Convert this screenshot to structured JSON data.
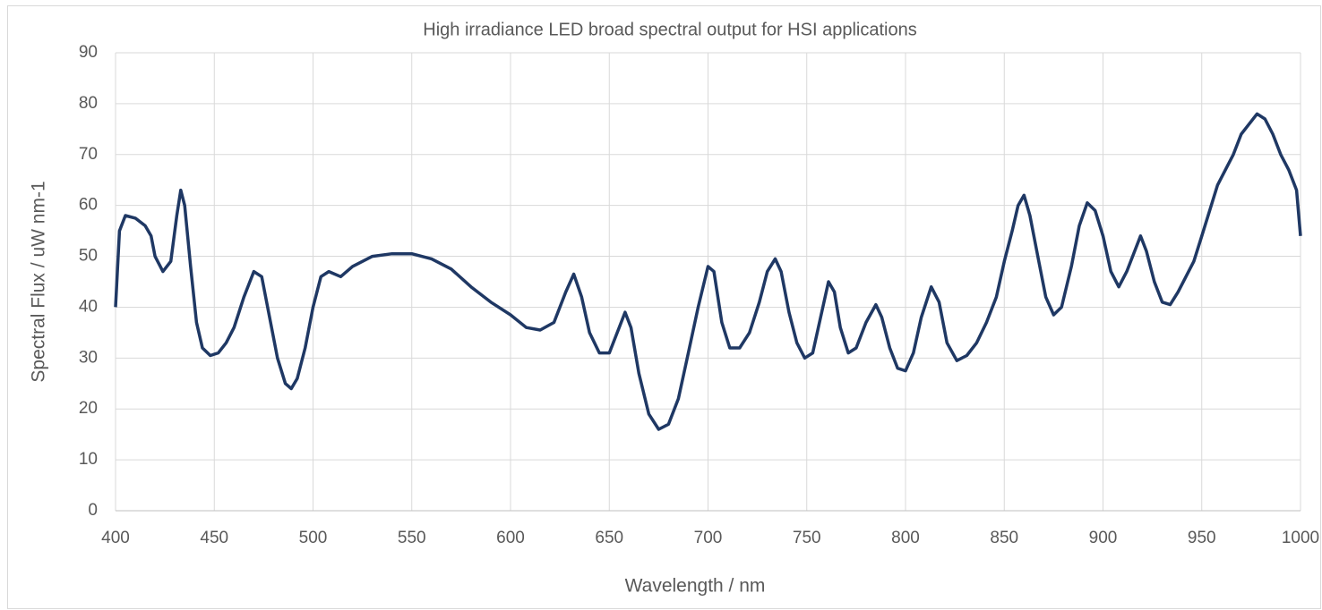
{
  "chart_data": {
    "type": "line",
    "title": "High irradiance LED broad spectral output for HSI applications",
    "x_label": "Wavelength / nm",
    "y_label": "Spectral Flux / uW nm-1",
    "xlim": [
      400,
      1000
    ],
    "xticks": [
      400,
      450,
      500,
      550,
      600,
      650,
      700,
      750,
      800,
      850,
      900,
      950,
      1000
    ],
    "ylim": [
      0,
      90
    ],
    "yticks": [
      0,
      10,
      20,
      30,
      40,
      50,
      60,
      70,
      80,
      90
    ],
    "grid": true,
    "x": [
      400,
      402,
      405,
      410,
      415,
      418,
      420,
      424,
      428,
      431,
      433,
      435,
      438,
      441,
      444,
      448,
      452,
      456,
      460,
      465,
      470,
      474,
      478,
      482,
      486,
      489,
      492,
      496,
      500,
      504,
      508,
      514,
      520,
      530,
      540,
      550,
      560,
      570,
      580,
      590,
      600,
      608,
      615,
      622,
      628,
      632,
      636,
      640,
      645,
      650,
      655,
      658,
      661,
      665,
      670,
      675,
      680,
      685,
      690,
      695,
      700,
      703,
      707,
      711,
      716,
      721,
      726,
      730,
      734,
      737,
      741,
      745,
      749,
      753,
      757,
      761,
      764,
      767,
      771,
      775,
      780,
      785,
      788,
      792,
      796,
      800,
      804,
      808,
      813,
      817,
      821,
      826,
      831,
      836,
      841,
      846,
      850,
      854,
      857,
      860,
      863,
      867,
      871,
      875,
      879,
      884,
      888,
      892,
      896,
      900,
      904,
      908,
      912,
      916,
      919,
      922,
      926,
      930,
      934,
      938,
      942,
      946,
      950,
      954,
      958,
      962,
      966,
      970,
      974,
      978,
      982,
      986,
      990,
      994,
      998,
      1000
    ],
    "series": [
      {
        "name": "Spectral flux",
        "color": "#1f3864",
        "values": [
          40,
          55,
          58,
          57.5,
          56,
          54,
          50,
          47,
          49,
          58,
          63,
          60,
          48,
          37,
          32,
          30.5,
          31,
          33,
          36,
          42,
          47,
          46,
          38,
          30,
          25,
          24,
          26,
          32,
          40,
          46,
          47,
          46,
          48,
          50,
          50.5,
          50.5,
          49.5,
          47.5,
          44,
          41,
          38.5,
          36,
          35.5,
          37,
          43,
          46.5,
          42,
          35,
          31,
          31,
          36,
          39,
          36,
          27,
          19,
          16,
          17,
          22,
          31,
          40,
          48,
          47,
          37,
          32,
          32,
          35,
          41,
          47,
          49.5,
          47,
          39,
          33,
          30,
          31,
          38,
          45,
          43,
          36,
          31,
          32,
          37,
          40.5,
          38,
          32,
          28,
          27.5,
          31,
          38,
          44,
          41,
          33,
          29.5,
          30.5,
          33,
          37,
          42,
          49,
          55,
          60,
          62,
          58,
          50,
          42,
          38.5,
          40,
          48,
          56,
          60.5,
          59,
          54,
          47,
          44,
          47,
          51,
          54,
          51,
          45,
          41,
          40.5,
          43,
          46,
          49,
          54,
          59,
          64,
          67,
          70,
          74,
          76,
          78,
          77,
          74,
          70,
          67,
          63,
          54
        ]
      }
    ]
  }
}
